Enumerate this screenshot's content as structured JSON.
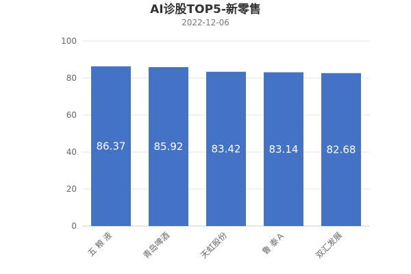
{
  "chart_data": {
    "type": "bar",
    "title": "AI诊股TOP5-新零售",
    "subtitle": "2022-12-06",
    "categories": [
      "五 粮 液",
      "青岛啤酒",
      "天虹股份",
      "鲁 泰Ａ",
      "双汇发展"
    ],
    "values": [
      86.37,
      85.92,
      83.42,
      83.14,
      82.68
    ],
    "value_labels": [
      "86.37",
      "85.92",
      "83.42",
      "83.14",
      "82.68"
    ],
    "ylim": [
      0,
      100
    ],
    "yticks": [
      "0",
      "20",
      "40",
      "60",
      "80",
      "100"
    ],
    "grid": true,
    "bar_color": "#4472c4"
  }
}
